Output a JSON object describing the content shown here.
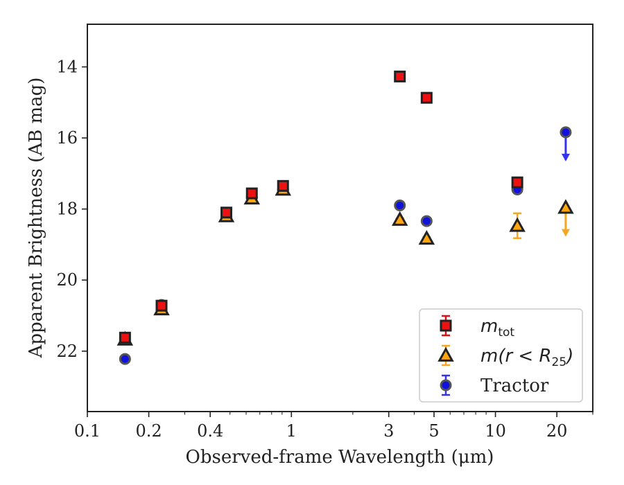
{
  "chart_data": {
    "type": "scatter",
    "xlabel": "Observed-frame Wavelength (μm)",
    "ylabel": "Apparent Brightness (AB mag)",
    "x_scale": "log",
    "y_inverted": true,
    "xlim": [
      0.1,
      30
    ],
    "ylim": [
      23.7,
      12.8
    ],
    "x_ticks": [
      {
        "value": 0.1,
        "label": "0.1"
      },
      {
        "value": 0.2,
        "label": "0.2"
      },
      {
        "value": 0.4,
        "label": "0.4"
      },
      {
        "value": 1,
        "label": "1"
      },
      {
        "value": 3,
        "label": "3"
      },
      {
        "value": 5,
        "label": "5"
      },
      {
        "value": 10,
        "label": "10"
      },
      {
        "value": 20,
        "label": "20"
      }
    ],
    "y_ticks": [
      {
        "value": 14,
        "label": "14"
      },
      {
        "value": 16,
        "label": "16"
      },
      {
        "value": 18,
        "label": "18"
      },
      {
        "value": 20,
        "label": "20"
      },
      {
        "value": 22,
        "label": "22"
      }
    ],
    "legend_position": "lower-right",
    "series": [
      {
        "name": "m_tot",
        "legend_main": "m",
        "legend_sub": "tot",
        "marker": "square",
        "color": "#ee1111",
        "edge": "#222222",
        "err_color": "#dd1111",
        "points": [
          {
            "x": 0.153,
            "y": 21.62,
            "err": 0.08
          },
          {
            "x": 0.231,
            "y": 20.72,
            "err": 0.05
          },
          {
            "x": 0.48,
            "y": 18.1,
            "err": 0.05
          },
          {
            "x": 0.64,
            "y": 17.56,
            "err": 0.05
          },
          {
            "x": 0.91,
            "y": 17.35,
            "err": 0.05
          },
          {
            "x": 3.4,
            "y": 14.27,
            "err": 0.03
          },
          {
            "x": 4.6,
            "y": 14.87,
            "err": 0.03
          },
          {
            "x": 12.8,
            "y": 17.25,
            "err": 0.05
          }
        ]
      },
      {
        "name": "m(r < R25)",
        "legend_main": "m(r < R",
        "legend_sub": "25",
        "legend_tail": ")",
        "marker": "triangle",
        "color": "#ffa510",
        "edge": "#222222",
        "err_color": "#f5a623",
        "points": [
          {
            "x": 0.153,
            "y": 21.67,
            "err": 0.05
          },
          {
            "x": 0.231,
            "y": 20.82,
            "err": 0.04
          },
          {
            "x": 0.48,
            "y": 18.2,
            "err": 0.04
          },
          {
            "x": 0.64,
            "y": 17.7,
            "err": 0.04
          },
          {
            "x": 0.91,
            "y": 17.45,
            "err": 0.04
          },
          {
            "x": 3.4,
            "y": 18.3,
            "err": 0.04
          },
          {
            "x": 4.6,
            "y": 18.83,
            "err": 0.04
          },
          {
            "x": 12.8,
            "y": 18.47,
            "err": 0.35
          },
          {
            "x": 22.1,
            "y": 17.96,
            "upper_limit": true
          }
        ]
      },
      {
        "name": "Tractor",
        "legend_main": "Tractor",
        "marker": "circle",
        "color": "#1111dd",
        "edge": "#555555",
        "err_color": "#3333ee",
        "points": [
          {
            "x": 0.153,
            "y": 22.22,
            "err": 0.03
          },
          {
            "x": 0.231,
            "y": 20.7,
            "err": 0.03
          },
          {
            "x": 0.48,
            "y": 18.18,
            "err": 0.03
          },
          {
            "x": 0.64,
            "y": 17.66,
            "err": 0.03
          },
          {
            "x": 0.91,
            "y": 17.45,
            "err": 0.03
          },
          {
            "x": 3.4,
            "y": 17.9,
            "err": 0.04
          },
          {
            "x": 4.6,
            "y": 18.34,
            "err": 0.04
          },
          {
            "x": 12.8,
            "y": 17.45,
            "err": 0.05
          },
          {
            "x": 22.1,
            "y": 15.84,
            "upper_limit": true
          }
        ]
      }
    ]
  }
}
